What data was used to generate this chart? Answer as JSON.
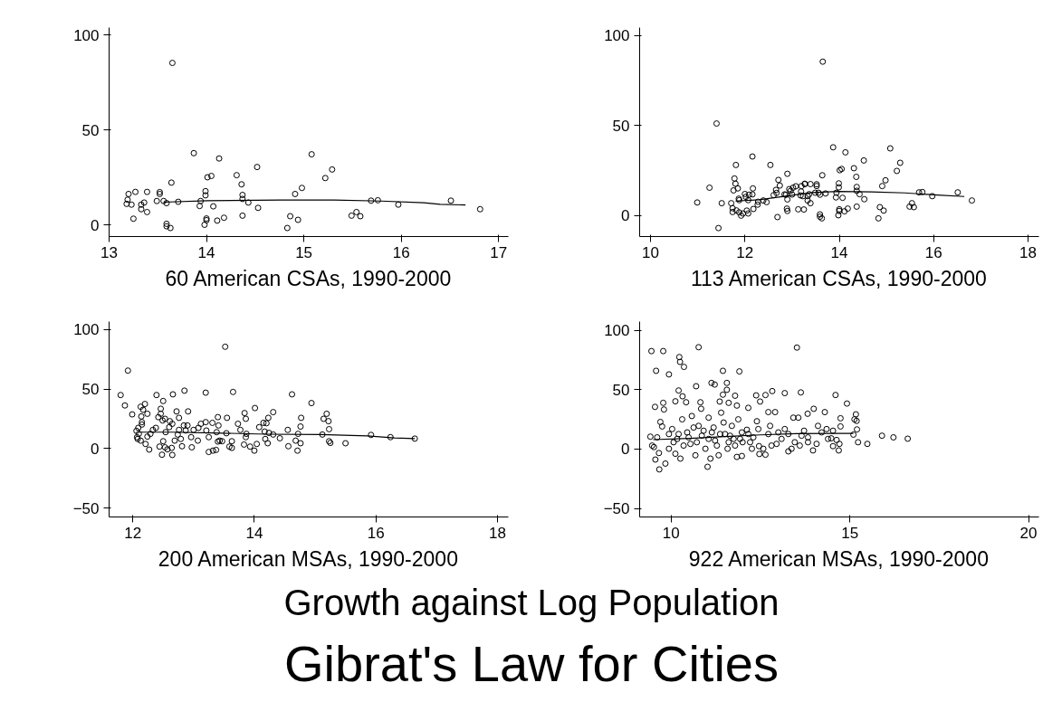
{
  "chart_data": [
    {
      "type": "scatter",
      "title": "60 American CSAs, 1990-2000",
      "xlim": [
        13,
        17.1
      ],
      "ylim": [
        -6,
        104
      ],
      "xticks": [
        13,
        14,
        15,
        16,
        17
      ],
      "yticks": [
        0,
        50,
        100
      ],
      "grid": false,
      "series": [
        {
          "type": "scatter",
          "marker": "circle",
          "color": "#000000",
          "x": [
            13.65,
            13.87,
            14.13,
            14.52,
            15.08,
            15.29,
            15.22,
            14.31,
            14.05,
            14.01,
            13.64,
            14.36,
            14.98,
            14.91,
            13.99,
            13.99,
            14.37,
            14.37,
            14.43,
            13.2,
            13.27,
            13.39,
            13.52,
            13.52,
            13.19,
            13.18,
            13.23,
            13.36,
            13.33,
            13.33,
            13.39,
            13.25,
            13.49,
            13.56,
            13.59,
            13.71,
            13.94,
            13.93,
            14.07,
            14.53,
            13.59,
            13.59,
            13.63,
            13.98,
            14.0,
            14.0,
            14.11,
            14.18,
            14.37,
            14.83,
            14.86,
            14.94,
            15.49,
            15.54,
            15.58,
            15.69,
            15.76,
            15.97,
            16.51,
            16.81
          ],
          "values": [
            85.4,
            37.9,
            35.1,
            30.6,
            37.3,
            29.3,
            24.8,
            26.3,
            25.9,
            25.2,
            22.4,
            21.5,
            19.6,
            16.4,
            17.9,
            15.7,
            15.9,
            13.8,
            11.9,
            16.4,
            17.5,
            17.5,
            17.4,
            16.4,
            13.4,
            11.2,
            10.8,
            11.9,
            10.8,
            8.4,
            6.9,
            3.4,
            12.7,
            12.7,
            11.6,
            12.3,
            12.7,
            10.1,
            9.9,
            9.1,
            0.7,
            -0.6,
            -1.5,
            0.2,
            2.6,
            3.5,
            2.4,
            3.9,
            5.0,
            -1.5,
            4.7,
            2.8,
            5.0,
            6.9,
            4.7,
            12.9,
            13.1,
            10.8,
            12.9,
            8.4
          ]
        },
        {
          "type": "line",
          "color": "#000000",
          "x": [
            13.56,
            14.01,
            14.76,
            15.31,
            15.79,
            16.23,
            16.4,
            16.66
          ],
          "values": [
            12.1,
            12.9,
            13.2,
            13.2,
            12.7,
            11.8,
            11.0,
            10.6
          ]
        }
      ]
    },
    {
      "type": "scatter",
      "title": "113 American CSAs, 1990-2000",
      "xlim": [
        9.77,
        18.23
      ],
      "ylim": [
        -11.6,
        104.3
      ],
      "xticks": [
        10,
        12,
        14,
        16,
        18
      ],
      "yticks": [
        0,
        50,
        100
      ],
      "grid": false,
      "series": [
        {
          "type": "scatter",
          "marker": "circle",
          "color": "#000000",
          "x": [
            10.99,
            11.25,
            11.4,
            11.44,
            11.51,
            11.71,
            11.74,
            11.74,
            11.76,
            11.78,
            11.8,
            11.81,
            11.82,
            11.85,
            11.87,
            11.88,
            11.88,
            11.92,
            11.96,
            12.0,
            12.02,
            12.04,
            12.07,
            12.07,
            12.09,
            12.16,
            12.16,
            12.17,
            12.18,
            12.28,
            12.27,
            12.39,
            12.46,
            12.54,
            12.61,
            12.66,
            12.67,
            12.69,
            12.71,
            12.74,
            12.84,
            12.87,
            12.89,
            12.9,
            12.9,
            12.9,
            12.94,
            12.97,
            13.0,
            13.02,
            13.08,
            13.13,
            13.27,
            13.65,
            13.87,
            14.13,
            14.52,
            15.08,
            15.29,
            15.22,
            14.31,
            14.05,
            14.01,
            13.64,
            14.36,
            14.98,
            14.91,
            13.99,
            13.99,
            14.37,
            14.37,
            14.43,
            13.2,
            13.27,
            13.39,
            13.52,
            13.52,
            13.19,
            13.18,
            13.23,
            13.36,
            13.33,
            13.33,
            13.39,
            13.25,
            13.49,
            13.56,
            13.59,
            13.71,
            13.94,
            13.93,
            14.07,
            14.53,
            13.59,
            13.59,
            13.63,
            13.98,
            14.0,
            14.0,
            14.11,
            14.18,
            14.37,
            14.83,
            14.86,
            14.94,
            15.49,
            15.54,
            15.58,
            15.69,
            15.76,
            15.97,
            16.51,
            16.81
          ],
          "values": [
            7.3,
            15.5,
            51.1,
            -6.9,
            6.9,
            6.9,
            4.1,
            2.0,
            14.0,
            20.6,
            17.7,
            28.1,
            2.9,
            15.1,
            9.4,
            8.6,
            1.8,
            0.0,
            1.2,
            12.0,
            10.4,
            2.8,
            1.2,
            8.6,
            11.6,
            11.8,
            32.8,
            15.1,
            3.7,
            7.7,
            6.1,
            8.4,
            7.5,
            28.1,
            11.4,
            14.3,
            12.6,
            -0.8,
            19.8,
            16.7,
            11.8,
            11.6,
            3.9,
            23.2,
            9.0,
            2.6,
            14.7,
            13.8,
            11.7,
            15.5,
            16.3,
            3.5,
            17.7,
            85.4,
            37.9,
            35.1,
            30.6,
            37.3,
            29.3,
            24.8,
            26.3,
            25.9,
            25.2,
            22.4,
            21.5,
            19.6,
            16.4,
            17.9,
            15.7,
            15.9,
            13.8,
            11.9,
            16.4,
            17.5,
            17.5,
            17.4,
            16.4,
            13.4,
            11.2,
            10.8,
            11.9,
            10.8,
            8.4,
            6.9,
            3.4,
            12.7,
            12.7,
            11.6,
            12.3,
            12.7,
            10.1,
            9.9,
            9.1,
            0.7,
            -0.6,
            -1.5,
            0.2,
            2.6,
            3.5,
            2.4,
            3.9,
            5.0,
            -1.5,
            4.7,
            2.8,
            5.0,
            6.9,
            4.7,
            12.9,
            13.1,
            10.8,
            12.9,
            8.4
          ]
        },
        {
          "type": "line",
          "color": "#000000",
          "x": [
            11.8,
            12.3,
            12.86,
            13.42,
            13.98,
            14.68,
            15.39,
            16.09,
            16.65
          ],
          "values": [
            8.1,
            8.8,
            10.8,
            12.8,
            13.4,
            13.2,
            12.6,
            11.4,
            10.6
          ]
        }
      ]
    },
    {
      "type": "scatter",
      "title": "200 American MSAs, 1990-2000",
      "xlim": [
        11.61,
        18.18
      ],
      "ylim": [
        -57.3,
        106.5
      ],
      "xticks": [
        12,
        14,
        16,
        18
      ],
      "yticks": [
        -50,
        0,
        50,
        100
      ],
      "grid": false,
      "series": [
        {
          "type": "scatter",
          "marker": "circle",
          "color": "#000000",
          "x": [
            11.8,
            11.92,
            11.87,
            11.99,
            12.13,
            12.2,
            12.17,
            12.24,
            12.14,
            12.15,
            12.15,
            12.09,
            12.06,
            12.1,
            12.07,
            12.08,
            12.13,
            12.21,
            12.27,
            12.24,
            12.29,
            12.33,
            12.38,
            12.39,
            12.46,
            12.46,
            12.5,
            12.42,
            12.49,
            12.53,
            12.48,
            12.44,
            12.5,
            12.53,
            12.57,
            12.54,
            12.6,
            12.61,
            12.65,
            12.66,
            12.65,
            12.69,
            12.64,
            12.72,
            12.76,
            12.76,
            12.74,
            12.79,
            12.81,
            12.85,
            12.84,
            12.87,
            12.91,
            12.9,
            12.96,
            12.97,
            13.0,
            13.07,
            13.08,
            13.12,
            13.2,
            13.2,
            13.21,
            13.25,
            13.25,
            13.31,
            13.32,
            13.38,
            13.37,
            13.4,
            13.41,
            13.4,
            13.43,
            13.52,
            13.47,
            13.55,
            13.54,
            13.59,
            13.63,
            13.65,
            13.63,
            13.73,
            13.77,
            13.84,
            13.86,
            13.86,
            13.83,
            13.87,
            13.93,
            14.0,
            14.01,
            14.04,
            14.08,
            14.15,
            14.17,
            14.18,
            14.2,
            14.23,
            14.24,
            14.22,
            14.31,
            14.31,
            14.42,
            14.55,
            14.56,
            14.62,
            14.68,
            14.71,
            14.72,
            14.76,
            14.77,
            14.76,
            14.94,
            15.12,
            15.14,
            15.19,
            15.22,
            15.23,
            15.23,
            15.25,
            15.5,
            15.92,
            16.24,
            16.64
          ],
          "values": [
            44.9,
            65.4,
            36.2,
            28.7,
            35.1,
            37.4,
            32.6,
            29.2,
            27.0,
            22.2,
            20.2,
            17.4,
            14.9,
            12.4,
            9.6,
            8.1,
            6.7,
            3.9,
            -0.8,
            10.1,
            12.4,
            15.7,
            17.4,
            44.9,
            33.4,
            29.2,
            39.9,
            26.4,
            23.6,
            25.0,
            -5.1,
            1.7,
            6.2,
            1.1,
            -0.6,
            13.8,
            18.0,
            23.0,
            20.8,
            45.5,
            -5.3,
            6.7,
            0.6,
            31.2,
            25.8,
            15.7,
            11.8,
            8.1,
            2.0,
            48.6,
            19.4,
            15.2,
            31.2,
            19.4,
            9.6,
            1.1,
            15.7,
            6.7,
            17.4,
            20.8,
            22.2,
            46.9,
            15.2,
            9.6,
            -2.8,
            21.6,
            -1.7,
            13.8,
            -1.1,
            26.4,
            19.4,
            5.9,
            6.7,
            85.4,
            6.2,
            25.8,
            12.9,
            1.7,
            0.6,
            47.5,
            6.2,
            20.8,
            15.7,
            29.8,
            25.0,
            9.6,
            3.4,
            12.4,
            1.7,
            -1.7,
            34.0,
            3.9,
            18.0,
            21.6,
            14.3,
            8.1,
            21.3,
            25.8,
            13.2,
            4.5,
            30.6,
            11.8,
            8.7,
            15.7,
            2.0,
            45.5,
            6.7,
            -1.7,
            12.4,
            18.5,
            25.8,
            4.5,
            38.2,
            11.8,
            25.0,
            29.2,
            23.0,
            16.3,
            6.2,
            4.8,
            4.5,
            11.5,
            9.6,
            8.4
          ]
        },
        {
          "type": "line",
          "color": "#000000",
          "x": [
            12.1,
            12.65,
            13.32,
            14.2,
            15.09,
            15.86,
            16.31,
            16.64
          ],
          "values": [
            13.8,
            13.8,
            13.2,
            12.1,
            11.8,
            10.7,
            9.0,
            8.4
          ]
        }
      ]
    },
    {
      "type": "scatter",
      "title": "922 American MSAs, 1990-2000",
      "xlim": [
        9.12,
        20.29
      ],
      "ylim": [
        -57.2,
        107.5
      ],
      "xticks": [
        10,
        15,
        20
      ],
      "yticks": [
        -50,
        0,
        50,
        100
      ],
      "grid": false,
      "series": [
        {
          "type": "scatter",
          "marker": "circle",
          "color": "#000000",
          "x": [
            9.45,
            9.78,
            10.77,
            10.23,
            10.25,
            10.36,
            9.58,
            9.94,
            11.45,
            11.91,
            13.52,
            10.7,
            11.13,
            11.22,
            11.56,
            10.21,
            11.56,
            11.79,
            12.38,
            12.64,
            12.83,
            13.18,
            13.63,
            14.6,
            14.92,
            9.55,
            9.78,
            9.8,
            10.12,
            10.32,
            10.42,
            10.82,
            10.84,
            11.36,
            11.45,
            11.61,
            11.84,
            12.16,
            12.49,
            12.72,
            12.91,
            13.99,
            14.3,
            13.82,
            15.17,
            13.42,
            13.56,
            14.74,
            14.11,
            15.13,
            15.19,
            15.2,
            15.1,
            14.74,
            14.48,
            14.53,
            14.63,
            14.71,
            14.69,
            14.53,
            15.23,
            15.49,
            15.9,
            16.22,
            16.62,
            9.42,
            9.47,
            9.52,
            9.56,
            9.67,
            9.84,
            9.66,
            9.75,
            9.7,
            9.61,
            9.94,
            10.12,
            10.26,
            10.03,
            10.17,
            10.31,
            10.45,
            10.54,
            10.68,
            10.58,
            10.77,
            10.86,
            10.96,
            11.02,
            11.1,
            11.05,
            11.19,
            11.23,
            11.33,
            11.4,
            11.47,
            11.51,
            11.58,
            11.7,
            11.75,
            11.84,
            11.88,
            11.98,
            12.0,
            11.98,
            12.12,
            12.26,
            12.3,
            12.4,
            12.44,
            12.46,
            12.47,
            12.64,
            12.58,
            12.72,
            12.81,
            12.77,
            12.95,
            13.0,
            13.09,
            13.18,
            13.28,
            13.37,
            13.28,
            13.46,
            13.6,
            13.65,
            13.72,
            13.83,
            13.83,
            13.97,
            14.07,
            14.21,
            14.35,
            14.39,
            9.94,
            10.07,
            10.21,
            10.35,
            10.49,
            10.63,
            10.72,
            10.91,
            11.05,
            11.14,
            11.28,
            11.37,
            11.61,
            11.65,
            11.79,
            11.93,
            12.16,
            12.21
          ],
          "values": [
            82.6,
            82.6,
            85.9,
            77.6,
            73.5,
            69.3,
            66.0,
            63.0,
            66.0,
            65.5,
            85.6,
            53.0,
            55.8,
            54.4,
            55.8,
            49.4,
            50.0,
            45.0,
            45.3,
            45.6,
            48.9,
            47.2,
            47.8,
            45.6,
            38.4,
            35.6,
            39.0,
            33.4,
            40.3,
            44.5,
            39.5,
            39.5,
            34.0,
            40.1,
            45.9,
            39.0,
            36.7,
            34.8,
            40.1,
            31.2,
            31.2,
            34.0,
            31.2,
            29.8,
            29.3,
            26.5,
            26.5,
            26.0,
            19.6,
            25.1,
            23.8,
            16.6,
            12.2,
            19.1,
            9.1,
            15.5,
            7.7,
            4.4,
            -1.1,
            2.5,
            5.8,
            4.4,
            11.3,
            9.9,
            8.8,
            10.5,
            3.0,
            1.7,
            -8.8,
            -17.1,
            -12.2,
            -3.3,
            19.1,
            22.9,
            9.9,
            0.3,
            -3.9,
            -8.0,
            16.9,
            8.6,
            25.1,
            14.1,
            4.4,
            -5.2,
            27.9,
            19.6,
            11.3,
            0.3,
            -14.9,
            -8.0,
            26.5,
            18.2,
            7.2,
            -5.2,
            30.7,
            22.4,
            12.7,
            0.3,
            19.6,
            8.6,
            -6.6,
            25.1,
            14.1,
            5.8,
            -5.8,
            16.3,
            0.3,
            9.9,
            23.5,
            16.9,
            2.5,
            -4.1,
            -4.7,
            0.3,
            12.7,
            3.0,
            19.6,
            4.4,
            14.1,
            8.6,
            16.9,
            12.7,
            0.3,
            -1.9,
            5.8,
            3.0,
            11.3,
            15.5,
            5.8,
            9.9,
            -1.1,
            4.4,
            14.1,
            16.9,
            8.6,
            12.7,
            5.8,
            12.7,
            3.0,
            9.9,
            18.2,
            5.8,
            15.5,
            8.6,
            14.1,
            3.0,
            12.7,
            5.8,
            11.3,
            3.0,
            8.6,
            12.7,
            5.8
          ]
        },
        {
          "type": "line",
          "color": "#000000",
          "x": [
            9.5,
            10.5,
            11.5,
            12.5,
            13.5,
            14.5,
            15.1
          ],
          "values": [
            8.0,
            9.0,
            10.5,
            12.0,
            13.0,
            13.3,
            13.3
          ]
        }
      ]
    },
    {
      "type": "other",
      "title": "Gibrat's Law for Cities",
      "subtitle": "Growth against Log Population"
    }
  ]
}
